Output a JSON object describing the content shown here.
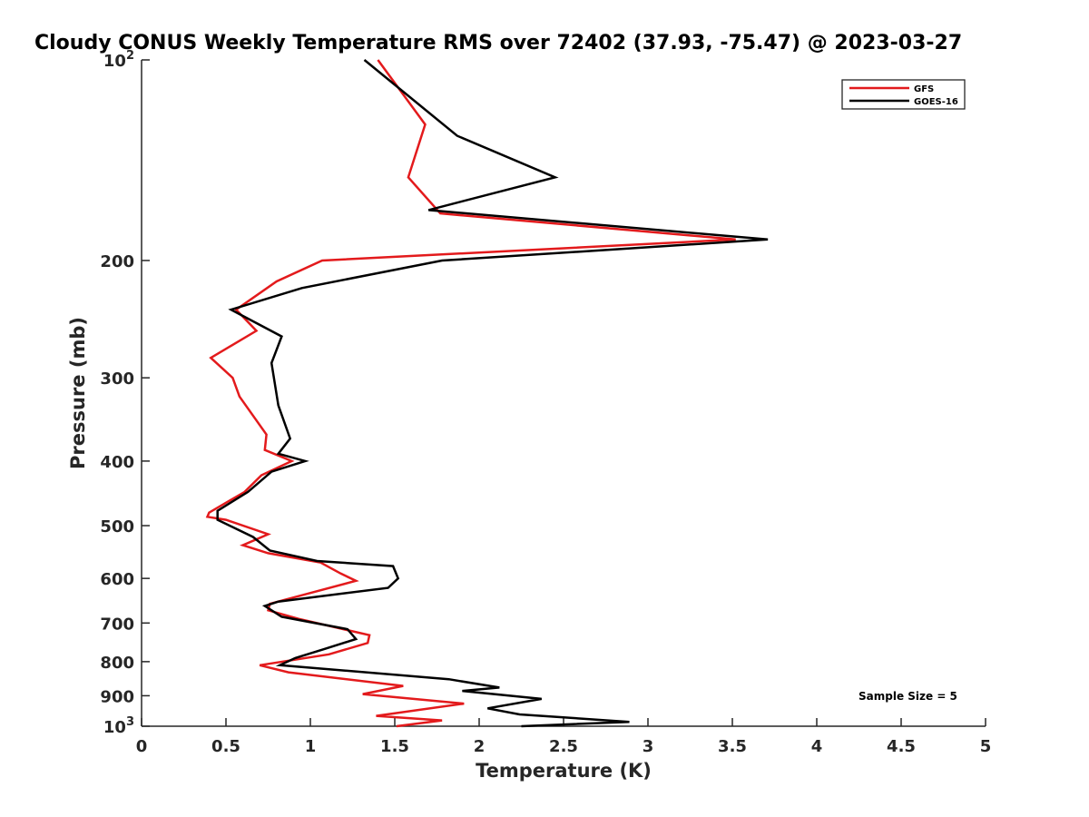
{
  "chart_data": {
    "type": "line",
    "title": "Cloudy CONUS Weekly Temperature RMS over 72402 (37.93, -75.47) @ 2023-03-27",
    "xlabel": "Temperature (K)",
    "ylabel": "Pressure (mb)",
    "xlim": [
      0,
      5
    ],
    "ylim": [
      1000,
      100
    ],
    "yscale": "log",
    "x_ticks": [
      {
        "v": 0,
        "label": "0"
      },
      {
        "v": 0.5,
        "label": "0.5"
      },
      {
        "v": 1,
        "label": "1"
      },
      {
        "v": 1.5,
        "label": "1.5"
      },
      {
        "v": 2,
        "label": "2"
      },
      {
        "v": 2.5,
        "label": "2.5"
      },
      {
        "v": 3,
        "label": "3"
      },
      {
        "v": 3.5,
        "label": "3.5"
      },
      {
        "v": 4,
        "label": "4"
      },
      {
        "v": 4.5,
        "label": "4.5"
      },
      {
        "v": 5,
        "label": "5"
      }
    ],
    "y_ticks": [
      {
        "v": 100,
        "base": "10",
        "exp": "2"
      },
      {
        "v": 200,
        "label": "200"
      },
      {
        "v": 300,
        "label": "300"
      },
      {
        "v": 400,
        "label": "400"
      },
      {
        "v": 500,
        "label": "500"
      },
      {
        "v": 600,
        "label": "600"
      },
      {
        "v": 700,
        "label": "700"
      },
      {
        "v": 800,
        "label": "800"
      },
      {
        "v": 900,
        "label": "900"
      },
      {
        "v": 1000,
        "base": "10",
        "exp": "3"
      }
    ],
    "grid": false,
    "legend_position": "top-right",
    "annotation": "Sample Size = 5",
    "series": [
      {
        "name": "GFS",
        "color": "#e31a1c",
        "points": [
          [
            1.4,
            100
          ],
          [
            1.68,
            125
          ],
          [
            1.58,
            150
          ],
          [
            1.77,
            170
          ],
          [
            3.52,
            186
          ],
          [
            1.07,
            200
          ],
          [
            0.8,
            215
          ],
          [
            0.56,
            237
          ],
          [
            0.68,
            255
          ],
          [
            0.41,
            280
          ],
          [
            0.54,
            300
          ],
          [
            0.58,
            320
          ],
          [
            0.74,
            365
          ],
          [
            0.73,
            385
          ],
          [
            0.89,
            400
          ],
          [
            0.71,
            420
          ],
          [
            0.61,
            445
          ],
          [
            0.4,
            478
          ],
          [
            0.39,
            485
          ],
          [
            0.5,
            490
          ],
          [
            0.75,
            515
          ],
          [
            0.6,
            535
          ],
          [
            0.75,
            550
          ],
          [
            1.06,
            568
          ],
          [
            1.18,
            590
          ],
          [
            1.27,
            605
          ],
          [
            0.76,
            655
          ],
          [
            0.75,
            670
          ],
          [
            0.93,
            690
          ],
          [
            1.35,
            730
          ],
          [
            1.34,
            750
          ],
          [
            1.11,
            780
          ],
          [
            0.7,
            810
          ],
          [
            0.87,
            830
          ],
          [
            1.55,
            870
          ],
          [
            1.31,
            895
          ],
          [
            1.91,
            925
          ],
          [
            1.39,
            965
          ],
          [
            1.78,
            980
          ],
          [
            1.51,
            1000
          ]
        ]
      },
      {
        "name": "GOES-16",
        "color": "#000000",
        "points": [
          [
            1.32,
            100
          ],
          [
            1.87,
            130
          ],
          [
            2.45,
            150
          ],
          [
            1.7,
            168
          ],
          [
            3.71,
            186
          ],
          [
            1.78,
            200
          ],
          [
            0.95,
            220
          ],
          [
            0.53,
            237
          ],
          [
            0.83,
            260
          ],
          [
            0.77,
            285
          ],
          [
            0.81,
            330
          ],
          [
            0.88,
            370
          ],
          [
            0.81,
            390
          ],
          [
            0.97,
            400
          ],
          [
            0.77,
            415
          ],
          [
            0.63,
            445
          ],
          [
            0.45,
            475
          ],
          [
            0.45,
            490
          ],
          [
            0.66,
            520
          ],
          [
            0.76,
            545
          ],
          [
            1.04,
            565
          ],
          [
            1.49,
            575
          ],
          [
            1.52,
            600
          ],
          [
            1.46,
            620
          ],
          [
            0.81,
            650
          ],
          [
            0.73,
            660
          ],
          [
            0.83,
            685
          ],
          [
            1.22,
            715
          ],
          [
            1.27,
            740
          ],
          [
            1.09,
            765
          ],
          [
            0.91,
            790
          ],
          [
            0.82,
            810
          ],
          [
            1.82,
            850
          ],
          [
            2.12,
            875
          ],
          [
            1.9,
            885
          ],
          [
            2.37,
            910
          ],
          [
            2.05,
            940
          ],
          [
            2.24,
            960
          ],
          [
            2.89,
            985
          ],
          [
            2.25,
            1000
          ]
        ]
      }
    ]
  }
}
